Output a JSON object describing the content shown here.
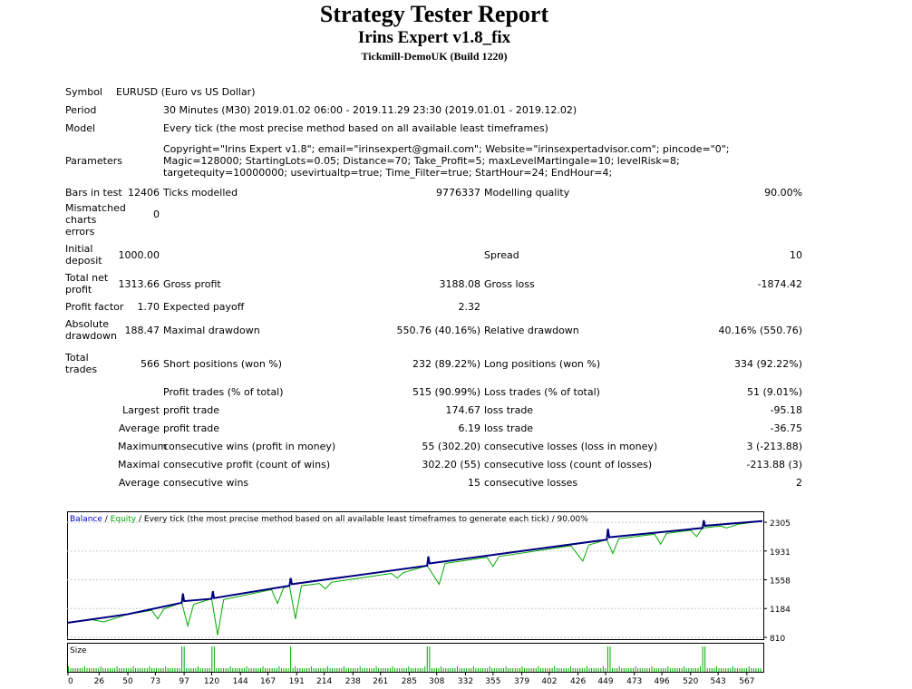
{
  "header": {
    "title": "Strategy Tester Report",
    "expert": "Irins Expert v1.8_fix",
    "server": "Tickmill-DemoUK (Build 1220)"
  },
  "info": {
    "symbol_label": "Symbol",
    "symbol": "EURUSD (Euro vs US Dollar)",
    "period_label": "Period",
    "period": "30 Minutes (M30) 2019.01.02 06:00 - 2019.11.29 23:30 (2019.01.01 - 2019.12.02)",
    "model_label": "Model",
    "model": "Every tick (the most precise method based on all available least timeframes)",
    "parameters_label": "Parameters",
    "parameters": "Copyright=\"Irins Expert v1.8\"; email=\"irinsexpert@gmail.com\"; Website=\"irinsexpertadvisor.com\"; pincode=\"0\"; Magic=128000; StartingLots=0.05; Distance=70; Take_Profit=5; maxLevelMartingale=10; levelRisk=8; targetequity=10000000; usevirtualtp=true; Time_Filter=true; StartHour=24; EndHour=4;"
  },
  "stats": {
    "bars_label": "Bars in test",
    "bars": "12406",
    "ticks_label": "Ticks modelled",
    "ticks": "9776337",
    "quality_label": "Modelling quality",
    "quality": "90.00%",
    "mismatched_label": "Mismatched charts errors",
    "mismatched": "0",
    "deposit_label": "Initial deposit",
    "deposit": "1000.00",
    "spread_label": "Spread",
    "spread": "10",
    "net_label": "Total net profit",
    "net": "1313.66",
    "gross_profit_label": "Gross profit",
    "gross_profit": "3188.08",
    "gross_loss_label": "Gross loss",
    "gross_loss": "-1874.42",
    "pf_label": "Profit factor",
    "pf": "1.70",
    "payoff_label": "Expected payoff",
    "payoff": "2.32",
    "abs_dd_label": "Absolute drawdown",
    "abs_dd": "188.47",
    "max_dd_label": "Maximal drawdown",
    "max_dd": "550.76 (40.16%)",
    "rel_dd_label": "Relative drawdown",
    "rel_dd": "40.16% (550.76)",
    "trades_label": "Total trades",
    "trades": "566",
    "short_label": "Short positions (won %)",
    "short": "232 (89.22%)",
    "long_label": "Long positions (won %)",
    "long": "334 (92.22%)",
    "profit_trades_label": "Profit trades (% of total)",
    "profit_trades": "515 (90.99%)",
    "loss_trades_label": "Loss trades (% of total)",
    "loss_trades": "51 (9.01%)",
    "largest_label": "Largest",
    "largest_pt_label": "profit trade",
    "largest_pt": "174.67",
    "largest_lt_label": "loss trade",
    "largest_lt": "-95.18",
    "average_label": "Average",
    "average_pt_label": "profit trade",
    "average_pt": "6.19",
    "average_lt_label": "loss trade",
    "average_lt": "-36.75",
    "maximum_label": "Maximum",
    "max_cw_label": "consecutive wins (profit in money)",
    "max_cw": "55 (302.20)",
    "max_cl_label": "consecutive losses (loss in money)",
    "max_cl": "3 (-213.88)",
    "maximal_label": "Maximal",
    "mxl_cp_label": "consecutive profit (count of wins)",
    "mxl_cp": "302.20 (55)",
    "mxl_cl_label": "consecutive loss (count of losses)",
    "mxl_cl": "-213.88 (3)",
    "avg2_label": "Average",
    "avg_cw_label": "consecutive wins",
    "avg_cw": "15",
    "avg_cl_label": "consecutive losses",
    "avg_cl": "2"
  },
  "chart_data": {
    "type": "line",
    "legend": {
      "balance": "Balance",
      "sep1": " / ",
      "equity": "Equity",
      "rest": " / Every tick (the most precise method based on all available least timeframes to generate each tick) / 90.00%"
    },
    "colors": {
      "balance": "#000080",
      "equity": "#00aa00",
      "volume": "#00aa00",
      "grid": "#c8c8c8"
    },
    "ylim": [
      810,
      2400
    ],
    "yticks": [
      2305,
      1931,
      1558,
      1184,
      810
    ],
    "xlim": [
      0,
      580
    ],
    "xticks": [
      0,
      26,
      50,
      73,
      97,
      120,
      144,
      167,
      191,
      214,
      238,
      261,
      285,
      308,
      332,
      355,
      379,
      402,
      426,
      449,
      473,
      496,
      520,
      543,
      567
    ],
    "volume_label": "Size",
    "balance": [
      [
        0,
        1000
      ],
      [
        50,
        1110
      ],
      [
        95,
        1260
      ],
      [
        96,
        1380
      ],
      [
        97,
        1280
      ],
      [
        120,
        1310
      ],
      [
        121,
        1410
      ],
      [
        122,
        1320
      ],
      [
        185,
        1480
      ],
      [
        186,
        1580
      ],
      [
        187,
        1500
      ],
      [
        300,
        1740
      ],
      [
        301,
        1860
      ],
      [
        302,
        1770
      ],
      [
        450,
        2080
      ],
      [
        451,
        2220
      ],
      [
        452,
        2110
      ],
      [
        530,
        2230
      ],
      [
        531,
        2330
      ],
      [
        532,
        2260
      ],
      [
        580,
        2320
      ]
    ],
    "equity": [
      [
        0,
        1000
      ],
      [
        20,
        1040
      ],
      [
        30,
        1010
      ],
      [
        50,
        1110
      ],
      [
        70,
        1160
      ],
      [
        75,
        1050
      ],
      [
        80,
        1180
      ],
      [
        95,
        1260
      ],
      [
        100,
        960
      ],
      [
        105,
        1240
      ],
      [
        120,
        1310
      ],
      [
        125,
        840
      ],
      [
        130,
        1300
      ],
      [
        170,
        1430
      ],
      [
        175,
        1250
      ],
      [
        180,
        1450
      ],
      [
        185,
        1480
      ],
      [
        190,
        1050
      ],
      [
        195,
        1480
      ],
      [
        210,
        1510
      ],
      [
        215,
        1440
      ],
      [
        220,
        1525
      ],
      [
        270,
        1640
      ],
      [
        275,
        1580
      ],
      [
        280,
        1650
      ],
      [
        300,
        1740
      ],
      [
        310,
        1500
      ],
      [
        315,
        1770
      ],
      [
        350,
        1850
      ],
      [
        355,
        1730
      ],
      [
        360,
        1860
      ],
      [
        420,
        2000
      ],
      [
        430,
        1800
      ],
      [
        435,
        2010
      ],
      [
        450,
        2080
      ],
      [
        455,
        1900
      ],
      [
        460,
        2090
      ],
      [
        490,
        2150
      ],
      [
        495,
        2020
      ],
      [
        500,
        2160
      ],
      [
        520,
        2200
      ],
      [
        525,
        2120
      ],
      [
        530,
        2230
      ],
      [
        545,
        2255
      ],
      [
        550,
        2230
      ],
      [
        560,
        2280
      ],
      [
        580,
        2320
      ]
    ]
  }
}
